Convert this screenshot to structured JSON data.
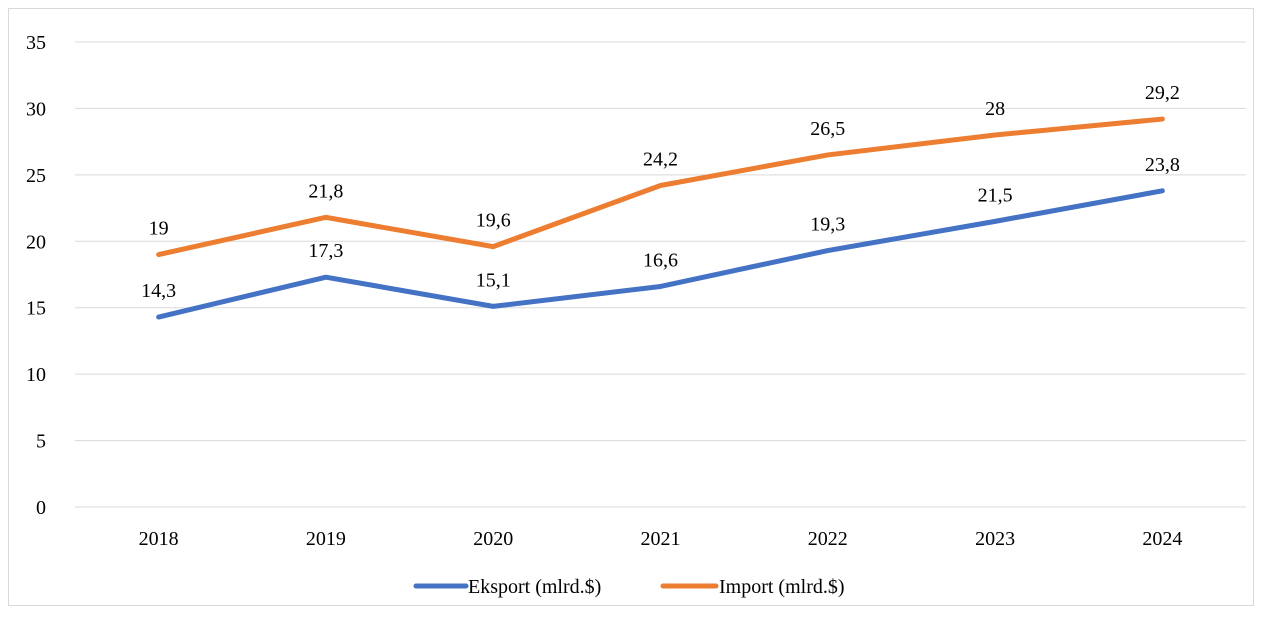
{
  "chart_data": {
    "type": "line",
    "categories": [
      "2018",
      "2019",
      "2020",
      "2021",
      "2022",
      "2023",
      "2024"
    ],
    "series": [
      {
        "name": "Eksport (mlrd.$)",
        "values": [
          14.3,
          17.3,
          15.1,
          16.6,
          19.3,
          21.5,
          23.8
        ],
        "labels": [
          "14,3",
          "17,3",
          "15,1",
          "16,6",
          "19,3",
          "21,5",
          "23,8"
        ],
        "color": "#4472C4"
      },
      {
        "name": "Import (mlrd.$)",
        "values": [
          19,
          21.8,
          19.6,
          24.2,
          26.5,
          28,
          29.2
        ],
        "labels": [
          "19",
          "21,8",
          "19,6",
          "24,2",
          "26,5",
          "28",
          "29,2"
        ],
        "color": "#ED7D31"
      }
    ],
    "ylim": [
      0,
      35
    ],
    "yticks": [
      "0",
      "5",
      "10",
      "15",
      "20",
      "25",
      "30",
      "35"
    ],
    "grid": true,
    "gridColor": "#d9d9d9",
    "legend": "bottom"
  }
}
